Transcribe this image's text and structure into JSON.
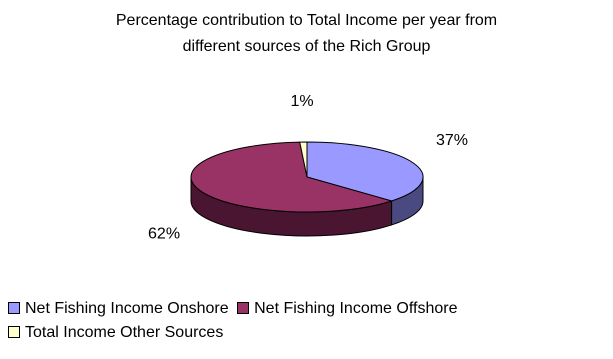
{
  "chart_data": {
    "type": "pie",
    "title": "Percentage contribution to Total Income per year from different sources of the Rich Group",
    "title_lines": [
      "Percentage contribution to Total Income per year from",
      "different sources of the Rich Group"
    ],
    "categories": [
      "Net Fishing Income Onshore",
      "Net Fishing Income Offshore",
      "Total Income Other Sources"
    ],
    "values": [
      37,
      62,
      1
    ],
    "data_labels": [
      "37%",
      "62%",
      "1%"
    ],
    "colors": [
      "#9999ff",
      "#993366",
      "#ffffcc"
    ],
    "side_colors": [
      "#4a4a80",
      "#4a1530",
      "#cccc80"
    ],
    "three_d": true,
    "legend_position": "bottom"
  }
}
